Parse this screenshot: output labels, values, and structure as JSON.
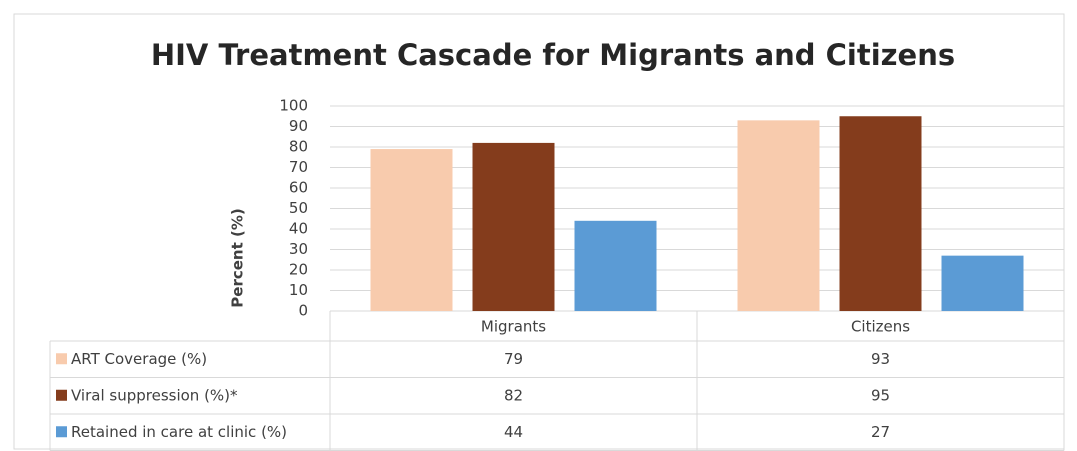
{
  "chart_data": {
    "type": "bar",
    "title": "HIV Treatment Cascade for Migrants and Citizens",
    "y_label": "Percent (%)",
    "categories": [
      "Migrants",
      "Citizens"
    ],
    "series": [
      {
        "name": "ART Coverage (%)",
        "color": "#f8cbad",
        "values": [
          79,
          93
        ]
      },
      {
        "name": "Viral suppression (%)*",
        "color": "#843c1c",
        "values": [
          82,
          95
        ]
      },
      {
        "name": "Retained in care at clinic (%)",
        "color": "#5b9bd5",
        "values": [
          44,
          27
        ]
      }
    ],
    "ylim": [
      0,
      100
    ],
    "yticks": [
      0,
      10,
      20,
      30,
      40,
      50,
      60,
      70,
      80,
      90,
      100
    ],
    "grid": true,
    "data_table": true
  }
}
